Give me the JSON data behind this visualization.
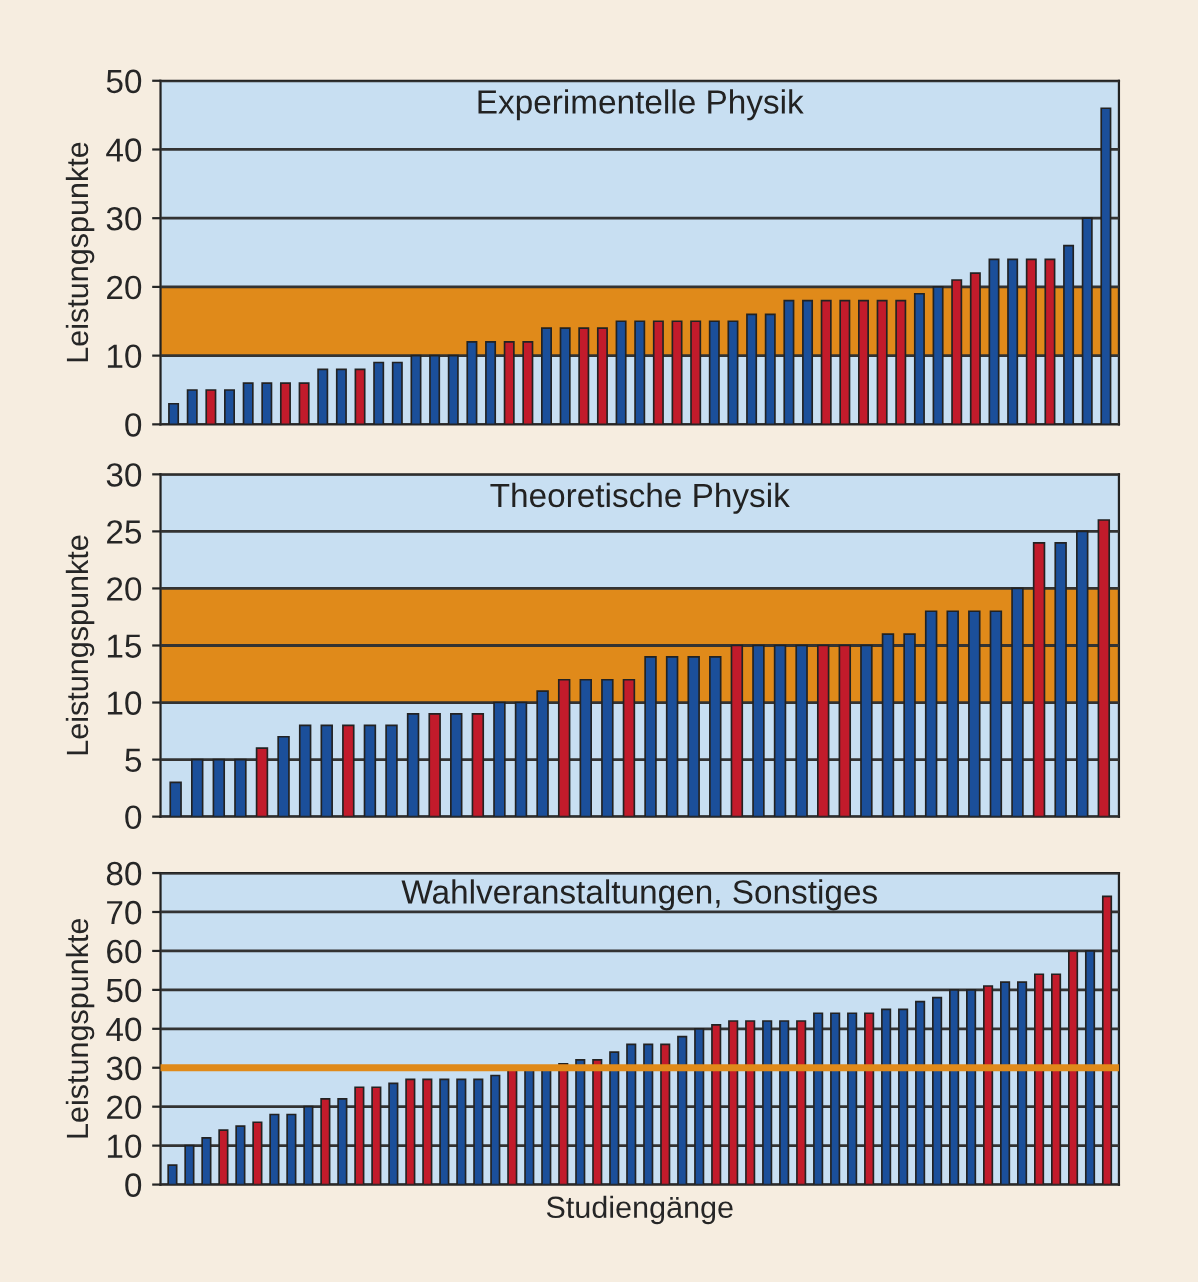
{
  "chart_data": [
    {
      "type": "bar",
      "title": "Experimentelle Physik",
      "ylabel": "Leistungspunkte",
      "tick_labels": "y",
      "grid": "y",
      "ylim": [
        0,
        50
      ],
      "yticks": [
        0,
        10,
        20,
        30,
        40,
        50
      ],
      "categories": [
        null,
        null,
        null,
        null,
        null,
        null,
        null,
        null,
        null,
        null,
        null,
        null,
        null,
        null,
        null,
        null,
        null,
        null,
        null,
        null,
        null,
        null,
        null,
        null,
        null,
        null,
        null,
        null,
        null,
        null,
        null,
        null,
        null,
        null,
        null,
        null,
        null,
        null,
        null,
        null,
        null,
        null,
        null,
        null,
        null,
        null,
        null,
        null,
        null,
        null,
        null
      ],
      "values": [
        3,
        5,
        5,
        5,
        6,
        6,
        6,
        6,
        8,
        8,
        8,
        9,
        9,
        10,
        10,
        10,
        12,
        12,
        12,
        12,
        14,
        14,
        14,
        14,
        15,
        15,
        15,
        15,
        15,
        15,
        15,
        16,
        16,
        18,
        18,
        18,
        18,
        18,
        18,
        18,
        19,
        20,
        21,
        22,
        24,
        24,
        24,
        24,
        26,
        30,
        46
      ],
      "colors": [
        "#1b4f9a",
        "#1b4f9a",
        "#c21b2b",
        "#1b4f9a",
        "#1b4f9a",
        "#1b4f9a",
        "#c21b2b",
        "#c21b2b",
        "#1b4f9a",
        "#1b4f9a",
        "#c21b2b",
        "#1b4f9a",
        "#1b4f9a",
        "#1b4f9a",
        "#1b4f9a",
        "#1b4f9a",
        "#1b4f9a",
        "#1b4f9a",
        "#c21b2b",
        "#c21b2b",
        "#1b4f9a",
        "#1b4f9a",
        "#c21b2b",
        "#c21b2b",
        "#1b4f9a",
        "#1b4f9a",
        "#c21b2b",
        "#c21b2b",
        "#c21b2b",
        "#1b4f9a",
        "#1b4f9a",
        "#1b4f9a",
        "#1b4f9a",
        "#1b4f9a",
        "#1b4f9a",
        "#c21b2b",
        "#c21b2b",
        "#c21b2b",
        "#c21b2b",
        "#c21b2b",
        "#1b4f9a",
        "#1b4f9a",
        "#c21b2b",
        "#c21b2b",
        "#1b4f9a",
        "#1b4f9a",
        "#c21b2b",
        "#c21b2b",
        "#1b4f9a",
        "#1b4f9a",
        "#1b4f9a"
      ],
      "bands": [
        {
          "axis": "y",
          "from": 10,
          "to": 20,
          "color": "#e08a1a"
        }
      ]
    },
    {
      "type": "bar",
      "title": "Theoretische Physik",
      "ylabel": "Leistungspunkte",
      "tick_labels": "y",
      "grid": "y",
      "ylim": [
        0,
        30
      ],
      "yticks": [
        0,
        5,
        10,
        15,
        20,
        25,
        30
      ],
      "categories": [
        null,
        null,
        null,
        null,
        null,
        null,
        null,
        null,
        null,
        null,
        null,
        null,
        null,
        null,
        null,
        null,
        null,
        null,
        null,
        null,
        null,
        null,
        null,
        null,
        null,
        null,
        null,
        null,
        null,
        null,
        null,
        null,
        null,
        null,
        null,
        null,
        null,
        null,
        null,
        null,
        null,
        null,
        null,
        null
      ],
      "values": [
        3,
        5,
        5,
        5,
        6,
        7,
        8,
        8,
        8,
        8,
        8,
        9,
        9,
        9,
        9,
        10,
        10,
        11,
        12,
        12,
        12,
        12,
        14,
        14,
        14,
        14,
        15,
        15,
        15,
        15,
        15,
        15,
        15,
        16,
        16,
        18,
        18,
        18,
        18,
        20,
        24,
        24,
        25,
        26
      ],
      "colors": [
        "#1b4f9a",
        "#1b4f9a",
        "#1b4f9a",
        "#1b4f9a",
        "#c21b2b",
        "#1b4f9a",
        "#1b4f9a",
        "#1b4f9a",
        "#c21b2b",
        "#1b4f9a",
        "#1b4f9a",
        "#1b4f9a",
        "#c21b2b",
        "#1b4f9a",
        "#c21b2b",
        "#1b4f9a",
        "#1b4f9a",
        "#1b4f9a",
        "#c21b2b",
        "#1b4f9a",
        "#1b4f9a",
        "#c21b2b",
        "#1b4f9a",
        "#1b4f9a",
        "#1b4f9a",
        "#1b4f9a",
        "#c21b2b",
        "#1b4f9a",
        "#1b4f9a",
        "#1b4f9a",
        "#c21b2b",
        "#c21b2b",
        "#1b4f9a",
        "#1b4f9a",
        "#1b4f9a",
        "#1b4f9a",
        "#1b4f9a",
        "#1b4f9a",
        "#1b4f9a",
        "#1b4f9a",
        "#c21b2b",
        "#1b4f9a",
        "#1b4f9a",
        "#c21b2b"
      ],
      "bands": [
        {
          "axis": "y",
          "from": 10,
          "to": 20,
          "color": "#e08a1a"
        }
      ]
    },
    {
      "type": "bar",
      "title": "Wahlveranstaltungen, Sonstiges",
      "ylabel": "Leistungspunkte",
      "xlabel": "Studiengänge",
      "tick_labels": "y",
      "grid": "y",
      "ylim": [
        0,
        80
      ],
      "yticks": [
        0,
        10,
        20,
        30,
        40,
        50,
        60,
        70,
        80
      ],
      "categories": [
        null,
        null,
        null,
        null,
        null,
        null,
        null,
        null,
        null,
        null,
        null,
        null,
        null,
        null,
        null,
        null,
        null,
        null,
        null,
        null,
        null,
        null,
        null,
        null,
        null,
        null,
        null,
        null,
        null,
        null,
        null,
        null,
        null,
        null,
        null,
        null,
        null,
        null,
        null,
        null,
        null,
        null,
        null,
        null,
        null,
        null,
        null,
        null,
        null,
        null,
        null,
        null,
        null,
        null,
        null,
        null
      ],
      "values": [
        5,
        10,
        12,
        14,
        15,
        16,
        18,
        18,
        20,
        22,
        22,
        25,
        25,
        26,
        27,
        27,
        27,
        27,
        27,
        28,
        30,
        30,
        30,
        31,
        32,
        32,
        34,
        36,
        36,
        36,
        38,
        40,
        41,
        42,
        42,
        42,
        42,
        42,
        44,
        44,
        44,
        44,
        45,
        45,
        47,
        48,
        50,
        50,
        51,
        52,
        52,
        54,
        54,
        60,
        60,
        74
      ],
      "colors": [
        "#1b4f9a",
        "#1b4f9a",
        "#1b4f9a",
        "#c21b2b",
        "#1b4f9a",
        "#c21b2b",
        "#1b4f9a",
        "#1b4f9a",
        "#1b4f9a",
        "#c21b2b",
        "#1b4f9a",
        "#c21b2b",
        "#c21b2b",
        "#1b4f9a",
        "#c21b2b",
        "#c21b2b",
        "#1b4f9a",
        "#1b4f9a",
        "#1b4f9a",
        "#1b4f9a",
        "#c21b2b",
        "#1b4f9a",
        "#1b4f9a",
        "#c21b2b",
        "#1b4f9a",
        "#c21b2b",
        "#1b4f9a",
        "#1b4f9a",
        "#1b4f9a",
        "#c21b2b",
        "#1b4f9a",
        "#1b4f9a",
        "#c21b2b",
        "#c21b2b",
        "#c21b2b",
        "#1b4f9a",
        "#1b4f9a",
        "#c21b2b",
        "#1b4f9a",
        "#1b4f9a",
        "#1b4f9a",
        "#c21b2b",
        "#1b4f9a",
        "#1b4f9a",
        "#1b4f9a",
        "#1b4f9a",
        "#1b4f9a",
        "#1b4f9a",
        "#c21b2b",
        "#1b4f9a",
        "#1b4f9a",
        "#c21b2b",
        "#c21b2b",
        "#c21b2b",
        "#1b4f9a",
        "#c21b2b"
      ],
      "ref_lines": [
        {
          "axis": "y",
          "value": 30,
          "color": "#e08a1a"
        }
      ]
    }
  ]
}
